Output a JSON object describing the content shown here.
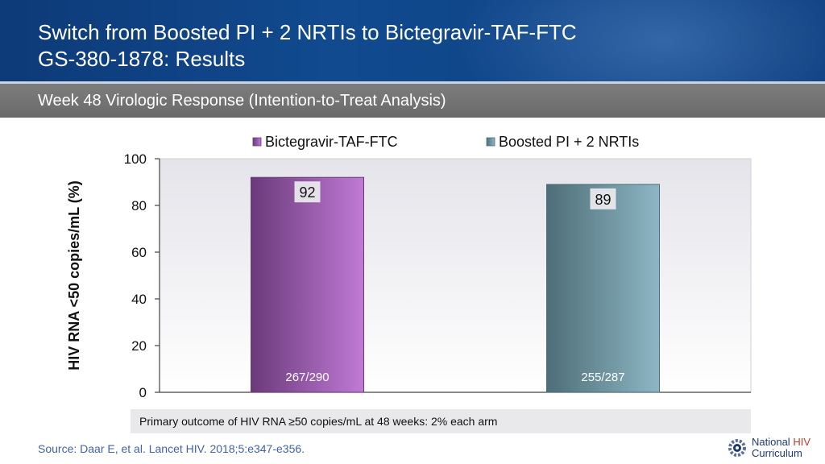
{
  "slide": {
    "title_line1": "Switch from Boosted PI + 2 NRTIs to Bictegravir-TAF-FTC",
    "title_line2": "GS-380-1878: Results",
    "subtitle": "Week 48 Virologic Response (Intention-to-Treat Analysis)",
    "footnote": "Primary outcome of HIV RNA ≥50 copies/mL at 48 weeks: 2% each arm",
    "source": "Source: Daar E, et al. Lancet HIV. 2018;5:e347-e356.",
    "logo": {
      "word1": "National",
      "word2": "HIV",
      "word3": "Curriculum",
      "icon": "gear-logo-icon"
    }
  },
  "chart_data": {
    "type": "bar",
    "ylabel": "HIV RNA <50 copies/mL (%)",
    "xlabel": "",
    "ylim": [
      0,
      100
    ],
    "yticks": [
      0,
      20,
      40,
      60,
      80,
      100
    ],
    "grid": false,
    "legend_position": "top",
    "categories": [
      "Bictegravir-TAF-FTC",
      "Boosted PI + 2 NRTIs"
    ],
    "series": [
      {
        "name": "Bictegravir-TAF-FTC",
        "value": 92,
        "label": "92",
        "count_label": "267/290",
        "color_dark": "#6a3a7a",
        "color_light": "#c07ad6"
      },
      {
        "name": "Boosted PI + 2 NRTIs",
        "value": 89,
        "label": "89",
        "count_label": "255/287",
        "color_dark": "#4e6e78",
        "color_light": "#8db6c4"
      }
    ]
  }
}
